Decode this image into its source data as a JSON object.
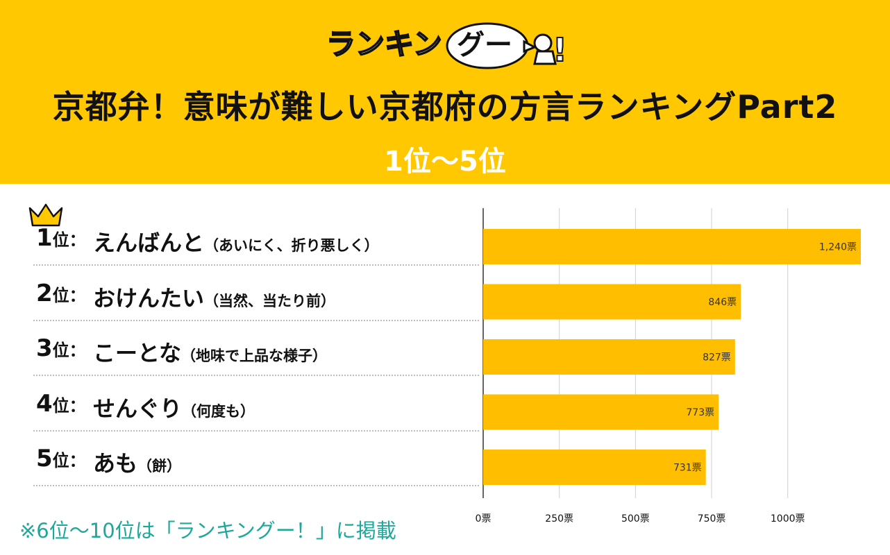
{
  "header": {
    "logo_text": "ランキングー!",
    "title": "京都弁！意味が難しい京都府の方言ランキングPart2",
    "subtitle": "1位〜5位"
  },
  "rows": [
    {
      "rank": "1",
      "suffix": "位：",
      "term": "えんばんと",
      "meaning": "（あいにく、折り悪しく）"
    },
    {
      "rank": "2",
      "suffix": "位：",
      "term": "おけんたい",
      "meaning": "（当然、当たり前）"
    },
    {
      "rank": "3",
      "suffix": "位：",
      "term": "こーとな",
      "meaning": "（地味で上品な様子）"
    },
    {
      "rank": "4",
      "suffix": "位：",
      "term": "せんぐり",
      "meaning": "（何度も）"
    },
    {
      "rank": "5",
      "suffix": "位：",
      "term": "あも",
      "meaning": "（餅）"
    }
  ],
  "footnote": "※6位〜10位は「ランキングー！」に掲載",
  "colors": {
    "banner": "#FFC800",
    "bar": "#FFBE00",
    "footnote": "#1FA89A"
  },
  "chart_data": {
    "type": "bar",
    "orientation": "horizontal",
    "categories": [
      "えんばんと",
      "おけんたい",
      "こーとな",
      "せんぐり",
      "あも"
    ],
    "values": [
      1240,
      846,
      827,
      773,
      731
    ],
    "value_labels": [
      "1,240票",
      "846票",
      "827票",
      "773票",
      "731票"
    ],
    "xlim": [
      0,
      1240
    ],
    "xticks": [
      0,
      250,
      500,
      750,
      1000
    ],
    "xtick_labels": [
      "0票",
      "250票",
      "500票",
      "750票",
      "1000票"
    ],
    "grid": true
  }
}
